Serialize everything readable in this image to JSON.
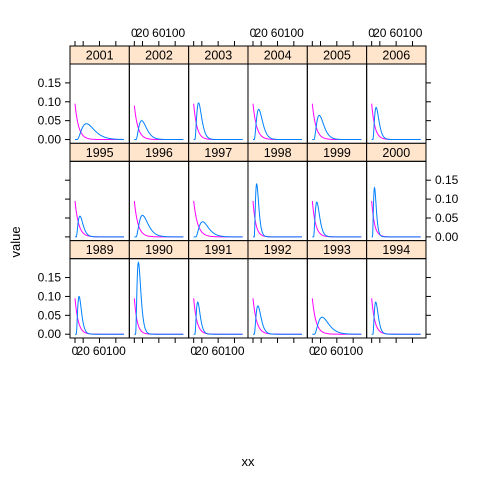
{
  "chart_data": {
    "type": "line",
    "layout": {
      "columns": 6,
      "rows": 3
    },
    "xlabel": "xx",
    "ylabel": "value",
    "xlim": [
      0,
      120
    ],
    "ylim": [
      -0.01,
      0.2
    ],
    "x_ticks": [
      0,
      20,
      60,
      100
    ],
    "x_tick_labels": [
      "0",
      "20",
      "60",
      "100"
    ],
    "y_ticks": [
      0,
      0.05,
      0.1,
      0.15
    ],
    "y_tick_labels": [
      "0.00",
      "0.05",
      "0.10",
      "0.15"
    ],
    "grid": false,
    "legend": "none",
    "colors": {
      "strip": "#ffe5cc",
      "series_a": "#0080ff",
      "series_b": "#ff00ff",
      "frame": "#000000"
    },
    "series_names": [
      "",
      ""
    ],
    "panel_rows": [
      [
        "2001",
        "2002",
        "2003",
        "2004",
        "2005",
        "2006"
      ],
      [
        "1995",
        "1996",
        "1997",
        "1998",
        "1999",
        "2000"
      ],
      [
        "1989",
        "1990",
        "1991",
        "1992",
        "1993",
        "1994"
      ]
    ],
    "panels": {
      "2001": {
        "a": {
          "peak_x": 28,
          "peak_y": 0.042,
          "start_x": 5
        },
        "b": {
          "start_y": 0.095,
          "decay": 9
        }
      },
      "2002": {
        "a": {
          "peak_x": 18,
          "peak_y": 0.05,
          "start_x": 4
        },
        "b": {
          "start_y": 0.09,
          "decay": 9
        }
      },
      "2003": {
        "a": {
          "peak_x": 12,
          "peak_y": 0.097,
          "start_x": 3
        },
        "b": {
          "start_y": 0.095,
          "decay": 8
        }
      },
      "2004": {
        "a": {
          "peak_x": 14,
          "peak_y": 0.08,
          "start_x": 3
        },
        "b": {
          "start_y": 0.095,
          "decay": 9
        }
      },
      "2005": {
        "a": {
          "peak_x": 17,
          "peak_y": 0.064,
          "start_x": 4
        },
        "b": {
          "start_y": 0.095,
          "decay": 9
        }
      },
      "2006": {
        "a": {
          "peak_x": 11,
          "peak_y": 0.085,
          "start_x": 3
        },
        "b": {
          "start_y": 0.095,
          "decay": 8
        }
      },
      "1995": {
        "a": {
          "peak_x": 12,
          "peak_y": 0.055,
          "start_x": 3
        },
        "b": {
          "start_y": 0.095,
          "decay": 9
        }
      },
      "1996": {
        "a": {
          "peak_x": 20,
          "peak_y": 0.057,
          "start_x": 4
        },
        "b": {
          "start_y": 0.095,
          "decay": 9
        }
      },
      "1997": {
        "a": {
          "peak_x": 22,
          "peak_y": 0.04,
          "start_x": 5
        },
        "b": {
          "start_y": 0.095,
          "decay": 10
        }
      },
      "1998": {
        "a": {
          "peak_x": 9,
          "peak_y": 0.14,
          "start_x": 3
        },
        "b": {
          "start_y": 0.095,
          "decay": 7
        }
      },
      "1999": {
        "a": {
          "peak_x": 11,
          "peak_y": 0.092,
          "start_x": 3
        },
        "b": {
          "start_y": 0.095,
          "decay": 8
        }
      },
      "2000": {
        "a": {
          "peak_x": 7,
          "peak_y": 0.13,
          "start_x": 2
        },
        "b": {
          "start_y": 0.095,
          "decay": 7
        }
      },
      "1989": {
        "a": {
          "peak_x": 10,
          "peak_y": 0.1,
          "start_x": 3
        },
        "b": {
          "start_y": 0.095,
          "decay": 8
        }
      },
      "1990": {
        "a": {
          "peak_x": 10,
          "peak_y": 0.19,
          "start_x": 3
        },
        "b": {
          "start_y": 0.095,
          "decay": 7
        }
      },
      "1991": {
        "a": {
          "peak_x": 10,
          "peak_y": 0.085,
          "start_x": 3
        },
        "b": {
          "start_y": 0.095,
          "decay": 8
        }
      },
      "1992": {
        "a": {
          "peak_x": 12,
          "peak_y": 0.075,
          "start_x": 3
        },
        "b": {
          "start_y": 0.095,
          "decay": 9
        }
      },
      "1993": {
        "a": {
          "peak_x": 24,
          "peak_y": 0.045,
          "start_x": 5
        },
        "b": {
          "start_y": 0.095,
          "decay": 9
        }
      },
      "1994": {
        "a": {
          "peak_x": 10,
          "peak_y": 0.085,
          "start_x": 3
        },
        "b": {
          "start_y": 0.095,
          "decay": 8
        }
      }
    }
  }
}
